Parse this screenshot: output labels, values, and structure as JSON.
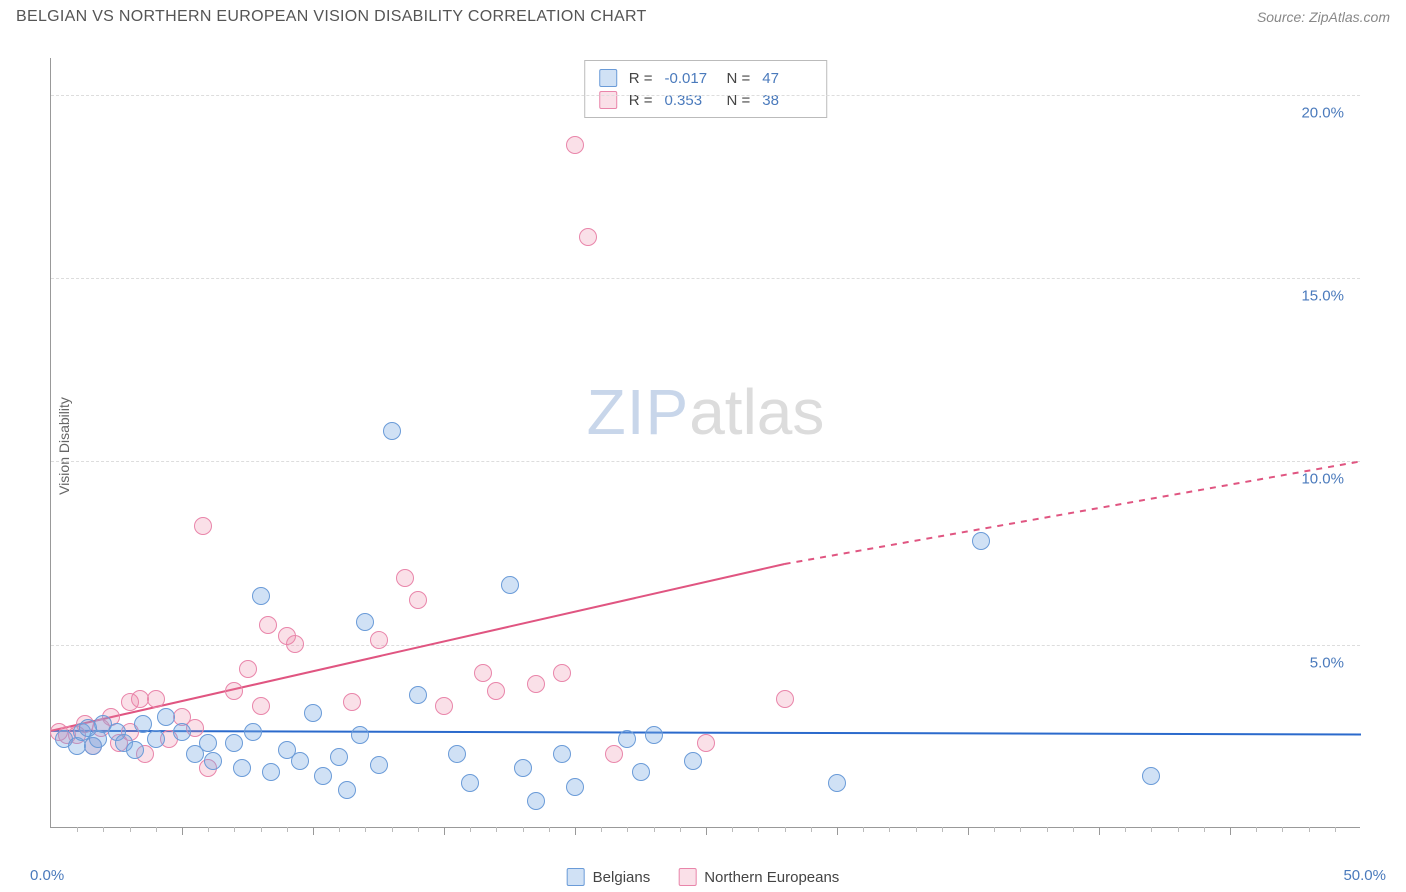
{
  "title": "BELGIAN VS NORTHERN EUROPEAN VISION DISABILITY CORRELATION CHART",
  "source": "Source: ZipAtlas.com",
  "ylabel": "Vision Disability",
  "chart": {
    "type": "scatter",
    "xlim": [
      0,
      50
    ],
    "ylim": [
      0,
      21
    ],
    "x_origin_label": "0.0%",
    "x_max_label": "50.0%",
    "yticks": [
      {
        "v": 5,
        "label": "5.0%"
      },
      {
        "v": 10,
        "label": "10.0%"
      },
      {
        "v": 15,
        "label": "15.0%"
      },
      {
        "v": 20,
        "label": "20.0%"
      }
    ],
    "grid_dash_color": "#dddddd",
    "axis_color": "#999999",
    "background_color": "#ffffff",
    "marker_radius": 9,
    "series": {
      "belgians": {
        "label": "Belgians",
        "fill": "rgba(120,170,225,0.35)",
        "stroke": "#6a9bd8",
        "R": "-0.017",
        "N": "47",
        "trend": {
          "x1": 0,
          "y1": 2.65,
          "x2": 50,
          "y2": 2.55,
          "color": "#2b6acc",
          "width": 2
        },
        "points": [
          [
            0.5,
            2.4
          ],
          [
            1.0,
            2.2
          ],
          [
            1.2,
            2.6
          ],
          [
            1.6,
            2.2
          ],
          [
            1.8,
            2.4
          ],
          [
            2.0,
            2.8
          ],
          [
            2.5,
            2.6
          ],
          [
            2.8,
            2.3
          ],
          [
            3.2,
            2.1
          ],
          [
            3.5,
            2.8
          ],
          [
            4.0,
            2.4
          ],
          [
            4.4,
            3.0
          ],
          [
            5.0,
            2.6
          ],
          [
            5.5,
            2.0
          ],
          [
            6.0,
            2.3
          ],
          [
            6.2,
            1.8
          ],
          [
            7.0,
            2.3
          ],
          [
            7.3,
            1.6
          ],
          [
            7.7,
            2.6
          ],
          [
            8.0,
            6.3
          ],
          [
            8.4,
            1.5
          ],
          [
            9.0,
            2.1
          ],
          [
            9.5,
            1.8
          ],
          [
            10.0,
            3.1
          ],
          [
            10.4,
            1.4
          ],
          [
            11.0,
            1.9
          ],
          [
            11.3,
            1.0
          ],
          [
            11.8,
            2.5
          ],
          [
            12.0,
            5.6
          ],
          [
            12.5,
            1.7
          ],
          [
            13.0,
            10.8
          ],
          [
            14.0,
            3.6
          ],
          [
            15.5,
            2.0
          ],
          [
            16.0,
            1.2
          ],
          [
            17.5,
            6.6
          ],
          [
            18.0,
            1.6
          ],
          [
            18.5,
            0.7
          ],
          [
            19.5,
            2.0
          ],
          [
            20.0,
            1.1
          ],
          [
            22.0,
            2.4
          ],
          [
            22.5,
            1.5
          ],
          [
            23.0,
            2.5
          ],
          [
            24.5,
            1.8
          ],
          [
            30.0,
            1.2
          ],
          [
            35.5,
            7.8
          ],
          [
            42.0,
            1.4
          ],
          [
            1.4,
            2.7
          ]
        ]
      },
      "neuropeans": {
        "label": "Northern Europeans",
        "fill": "rgba(235,130,165,0.25)",
        "stroke": "#e985aa",
        "R": "0.353",
        "N": "38",
        "trend": {
          "x1": 0,
          "y1": 2.65,
          "x2_solid": 28,
          "y2_solid": 7.2,
          "x2": 50,
          "y2": 10.0,
          "color": "#e05581",
          "width": 2
        },
        "points": [
          [
            0.3,
            2.6
          ],
          [
            0.6,
            2.5
          ],
          [
            1.0,
            2.5
          ],
          [
            1.3,
            2.8
          ],
          [
            1.6,
            2.2
          ],
          [
            1.9,
            2.7
          ],
          [
            2.3,
            3.0
          ],
          [
            2.6,
            2.3
          ],
          [
            3.0,
            3.4
          ],
          [
            3.4,
            3.5
          ],
          [
            3.6,
            2.0
          ],
          [
            4.0,
            3.5
          ],
          [
            4.5,
            2.4
          ],
          [
            5.0,
            3.0
          ],
          [
            5.5,
            2.7
          ],
          [
            5.8,
            8.2
          ],
          [
            6.0,
            1.6
          ],
          [
            7.0,
            3.7
          ],
          [
            7.5,
            4.3
          ],
          [
            8.0,
            3.3
          ],
          [
            8.3,
            5.5
          ],
          [
            9.0,
            5.2
          ],
          [
            9.3,
            5.0
          ],
          [
            11.5,
            3.4
          ],
          [
            12.5,
            5.1
          ],
          [
            13.5,
            6.8
          ],
          [
            14.0,
            6.2
          ],
          [
            15.0,
            3.3
          ],
          [
            16.5,
            4.2
          ],
          [
            17.0,
            3.7
          ],
          [
            18.5,
            3.9
          ],
          [
            19.5,
            4.2
          ],
          [
            20.0,
            18.6
          ],
          [
            20.5,
            16.1
          ],
          [
            21.5,
            2.0
          ],
          [
            25.0,
            2.3
          ],
          [
            28.0,
            3.5
          ],
          [
            3.0,
            2.6
          ]
        ]
      }
    }
  },
  "watermark": {
    "part1": "ZIP",
    "part2": "atlas"
  },
  "legend_bottom": {
    "belgians": "Belgians",
    "neuropeans": "Northern Europeans"
  }
}
